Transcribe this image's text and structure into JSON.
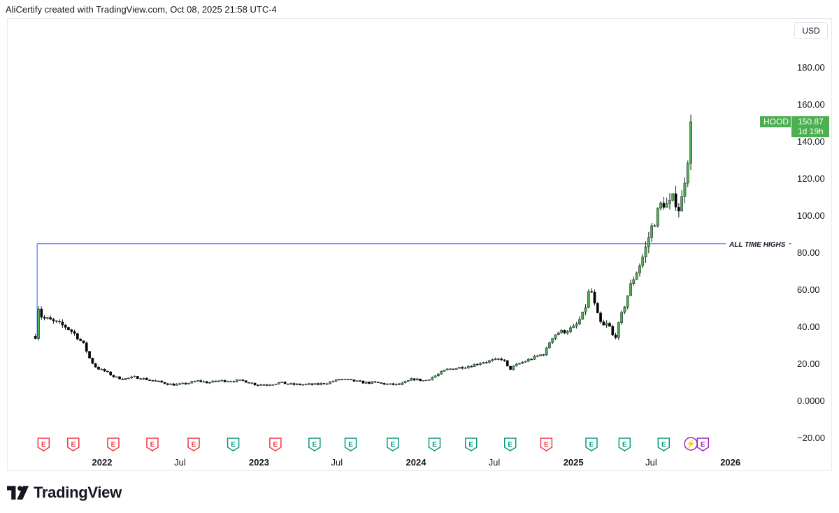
{
  "attribution": "AliCertify created with TradingView.com, Oct 08, 2025 21:58 UTC-4",
  "brand": {
    "name": "TradingView"
  },
  "currency": "USD",
  "chart_data": {
    "type": "candlestick",
    "symbol": "HOOD",
    "last_price": "150.87",
    "countdown": "1d 19h",
    "y_ticks": [
      "180.00",
      "160.00",
      "140.00",
      "120.00",
      "100.00",
      "80.00",
      "60.00",
      "40.00",
      "20.00",
      "0.0000",
      "−20.00"
    ],
    "x_ticks": [
      {
        "label": "2022",
        "date": "2022-01-01",
        "bold": true
      },
      {
        "label": "Jul",
        "date": "2022-07-01",
        "bold": false
      },
      {
        "label": "2023",
        "date": "2023-01-01",
        "bold": true
      },
      {
        "label": "Jul",
        "date": "2023-07-01",
        "bold": false
      },
      {
        "label": "2024",
        "date": "2024-01-01",
        "bold": true
      },
      {
        "label": "Jul",
        "date": "2024-07-01",
        "bold": false
      },
      {
        "label": "2025",
        "date": "2025-01-01",
        "bold": true
      },
      {
        "label": "Jul",
        "date": "2025-07-01",
        "bold": false
      },
      {
        "label": "2026",
        "date": "2026-01-01",
        "bold": true
      }
    ],
    "ylim": [
      -20,
      200
    ],
    "interval": "weekly",
    "closes": [
      {
        "date": "2021-07-30",
        "close": 35
      },
      {
        "date": "2021-08-03",
        "close": 55
      },
      {
        "date": "2021-08-08",
        "close": 48
      },
      {
        "date": "2021-08-15",
        "close": 45
      },
      {
        "date": "2021-08-29",
        "close": 44
      },
      {
        "date": "2021-09-19",
        "close": 42
      },
      {
        "date": "2021-10-10",
        "close": 40
      },
      {
        "date": "2021-10-31",
        "close": 36
      },
      {
        "date": "2021-11-21",
        "close": 30
      },
      {
        "date": "2021-12-05",
        "close": 22
      },
      {
        "date": "2021-12-19",
        "close": 18
      },
      {
        "date": "2022-01-09",
        "close": 16
      },
      {
        "date": "2022-01-30",
        "close": 13
      },
      {
        "date": "2022-02-20",
        "close": 12
      },
      {
        "date": "2022-03-20",
        "close": 13
      },
      {
        "date": "2022-04-10",
        "close": 12
      },
      {
        "date": "2022-05-01",
        "close": 11
      },
      {
        "date": "2022-05-22",
        "close": 10
      },
      {
        "date": "2022-06-12",
        "close": 9
      },
      {
        "date": "2022-07-03",
        "close": 9
      },
      {
        "date": "2022-07-24",
        "close": 10
      },
      {
        "date": "2022-08-14",
        "close": 11
      },
      {
        "date": "2022-09-04",
        "close": 10
      },
      {
        "date": "2022-10-02",
        "close": 11
      },
      {
        "date": "2022-10-30",
        "close": 11
      },
      {
        "date": "2022-11-27",
        "close": 11
      },
      {
        "date": "2022-12-25",
        "close": 9
      },
      {
        "date": "2023-01-22",
        "close": 9
      },
      {
        "date": "2023-02-19",
        "close": 10
      },
      {
        "date": "2023-03-19",
        "close": 9
      },
      {
        "date": "2023-04-16",
        "close": 9
      },
      {
        "date": "2023-05-14",
        "close": 9
      },
      {
        "date": "2023-06-11",
        "close": 10
      },
      {
        "date": "2023-07-09",
        "close": 12
      },
      {
        "date": "2023-08-06",
        "close": 11
      },
      {
        "date": "2023-09-03",
        "close": 10
      },
      {
        "date": "2023-10-01",
        "close": 10
      },
      {
        "date": "2023-10-29",
        "close": 9
      },
      {
        "date": "2023-11-26",
        "close": 9
      },
      {
        "date": "2023-12-24",
        "close": 12
      },
      {
        "date": "2024-01-21",
        "close": 11
      },
      {
        "date": "2024-02-18",
        "close": 14
      },
      {
        "date": "2024-03-10",
        "close": 17
      },
      {
        "date": "2024-04-07",
        "close": 18
      },
      {
        "date": "2024-05-05",
        "close": 19
      },
      {
        "date": "2024-06-02",
        "close": 21
      },
      {
        "date": "2024-06-30",
        "close": 22
      },
      {
        "date": "2024-07-21",
        "close": 23
      },
      {
        "date": "2024-08-04",
        "close": 17
      },
      {
        "date": "2024-08-25",
        "close": 20
      },
      {
        "date": "2024-09-15",
        "close": 22
      },
      {
        "date": "2024-10-06",
        "close": 24
      },
      {
        "date": "2024-10-27",
        "close": 26
      },
      {
        "date": "2024-11-10",
        "close": 34
      },
      {
        "date": "2024-11-24",
        "close": 37
      },
      {
        "date": "2024-12-15",
        "close": 38
      },
      {
        "date": "2025-01-05",
        "close": 40
      },
      {
        "date": "2025-01-26",
        "close": 48
      },
      {
        "date": "2025-02-09",
        "close": 62
      },
      {
        "date": "2025-02-23",
        "close": 48
      },
      {
        "date": "2025-03-09",
        "close": 40
      },
      {
        "date": "2025-03-23",
        "close": 42
      },
      {
        "date": "2025-04-06",
        "close": 33
      },
      {
        "date": "2025-04-20",
        "close": 44
      },
      {
        "date": "2025-05-04",
        "close": 55
      },
      {
        "date": "2025-05-18",
        "close": 65
      },
      {
        "date": "2025-06-01",
        "close": 72
      },
      {
        "date": "2025-06-15",
        "close": 80
      },
      {
        "date": "2025-06-29",
        "close": 92
      },
      {
        "date": "2025-07-13",
        "close": 100
      },
      {
        "date": "2025-07-27",
        "close": 108
      },
      {
        "date": "2025-08-10",
        "close": 105
      },
      {
        "date": "2025-08-24",
        "close": 110
      },
      {
        "date": "2025-09-07",
        "close": 102
      },
      {
        "date": "2025-09-14",
        "close": 118
      },
      {
        "date": "2025-09-21",
        "close": 125
      },
      {
        "date": "2025-09-28",
        "close": 142
      },
      {
        "date": "2025-10-05",
        "close": 150.87
      }
    ],
    "annotations": [
      {
        "text": "ALL TIME HIGHS",
        "price": 85,
        "from_date": "2021-08-03"
      }
    ],
    "events": [
      {
        "date": "2021-08-18",
        "type": "earnings",
        "status": "negative"
      },
      {
        "date": "2021-10-26",
        "type": "earnings",
        "status": "negative"
      },
      {
        "date": "2022-01-27",
        "type": "earnings",
        "status": "negative"
      },
      {
        "date": "2022-04-28",
        "type": "earnings",
        "status": "negative"
      },
      {
        "date": "2022-08-02",
        "type": "earnings",
        "status": "negative"
      },
      {
        "date": "2022-11-02",
        "type": "earnings",
        "status": "positive"
      },
      {
        "date": "2023-02-08",
        "type": "earnings",
        "status": "negative"
      },
      {
        "date": "2023-05-10",
        "type": "earnings",
        "status": "positive"
      },
      {
        "date": "2023-08-02",
        "type": "earnings",
        "status": "positive"
      },
      {
        "date": "2023-11-08",
        "type": "earnings",
        "status": "positive"
      },
      {
        "date": "2024-02-13",
        "type": "earnings",
        "status": "positive"
      },
      {
        "date": "2024-05-08",
        "type": "earnings",
        "status": "positive"
      },
      {
        "date": "2024-08-07",
        "type": "earnings",
        "status": "positive"
      },
      {
        "date": "2024-10-30",
        "type": "earnings",
        "status": "negative"
      },
      {
        "date": "2025-02-12",
        "type": "earnings",
        "status": "positive"
      },
      {
        "date": "2025-04-30",
        "type": "earnings",
        "status": "positive"
      },
      {
        "date": "2025-07-30",
        "type": "earnings",
        "status": "positive"
      },
      {
        "date": "2025-10-01",
        "type": "dividend",
        "status": "upcoming"
      },
      {
        "date": "2025-10-29",
        "type": "earnings",
        "status": "upcoming"
      }
    ],
    "colors": {
      "up": "#4caf50",
      "down": "#000000",
      "price_label": "#4caf50",
      "annotation_line": "#2962ff",
      "earnings_negative": "#f23645",
      "earnings_positive": "#089981",
      "upcoming": "#9c27b0"
    }
  }
}
